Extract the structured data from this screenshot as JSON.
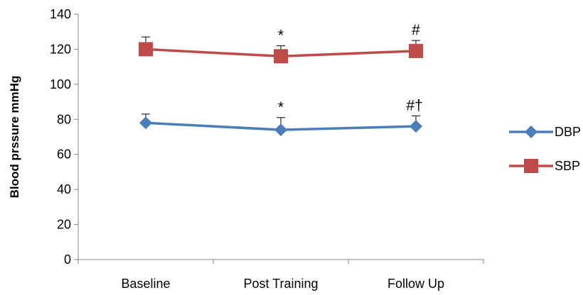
{
  "chart_data": {
    "type": "line",
    "title": "",
    "xlabel": "",
    "ylabel": "Blood prssure mmHg",
    "categories": [
      "Baseline",
      "Post Training",
      "Follow Up"
    ],
    "ylim": [
      0,
      140
    ],
    "yticks": [
      0,
      20,
      40,
      60,
      80,
      100,
      120,
      140
    ],
    "grid": false,
    "legend_position": "right",
    "series": [
      {
        "name": "DBP",
        "color": "#4A7EBB",
        "marker": "diamond",
        "values": [
          78,
          74,
          76
        ],
        "error": [
          5,
          7,
          6
        ],
        "annotations": [
          "",
          "*",
          "#†"
        ]
      },
      {
        "name": "SBP",
        "color": "#BE4B48",
        "marker": "square",
        "values": [
          120,
          116,
          119
        ],
        "error": [
          7,
          6,
          6
        ],
        "annotations": [
          "",
          "*",
          "#"
        ]
      }
    ]
  }
}
